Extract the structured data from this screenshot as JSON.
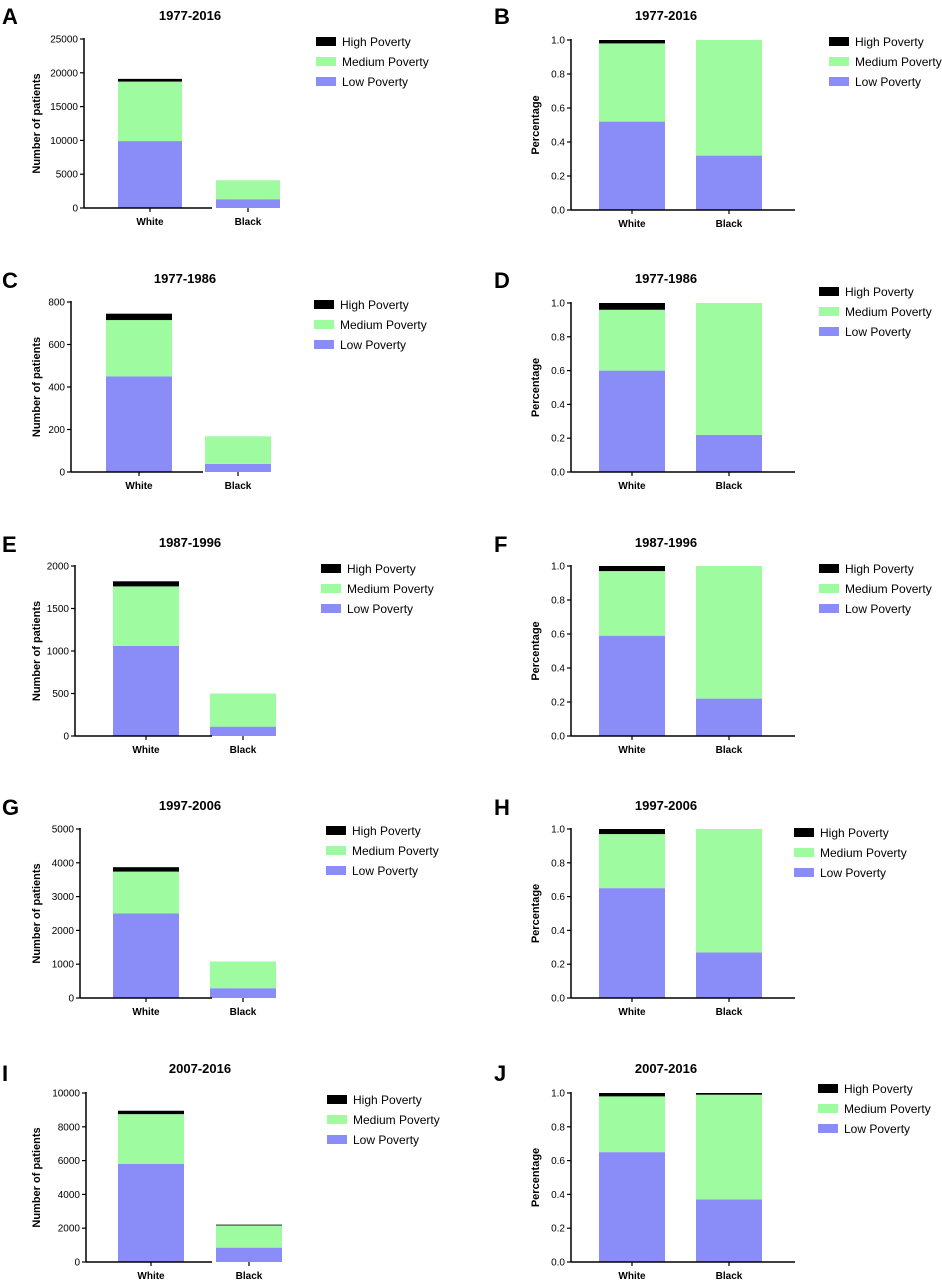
{
  "legend": {
    "high": "High Poverty",
    "medium": "Medium Poverty",
    "low": "Low Poverty"
  },
  "colors": {
    "high": "#000000",
    "medium": "#9ffb9f",
    "low": "#8a8cf8"
  },
  "chart_data": [
    {
      "id": "A",
      "letter": "A",
      "type": "bar",
      "stacked": true,
      "title": "1977-2016",
      "ylabel": "Number of patients",
      "xlabel": "",
      "ylim": [
        0,
        25000
      ],
      "yticks": [
        0,
        5000,
        10000,
        15000,
        20000,
        25000
      ],
      "ytick_labels": [
        "0",
        "5000",
        "10000",
        "15000",
        "20000",
        "25000"
      ],
      "categories": [
        "White",
        "Black"
      ],
      "series": [
        {
          "name": "Low Poverty",
          "values": [
            9900,
            1300
          ]
        },
        {
          "name": "Medium Poverty",
          "values": [
            8800,
            2800
          ]
        },
        {
          "name": "High Poverty",
          "values": [
            400,
            0
          ]
        }
      ]
    },
    {
      "id": "B",
      "letter": "B",
      "type": "bar",
      "stacked": true,
      "title": "1977-2016",
      "ylabel": "Percentage",
      "xlabel": "",
      "ylim": [
        0,
        1.0
      ],
      "yticks": [
        0,
        0.2,
        0.4,
        0.6,
        0.8,
        1.0
      ],
      "ytick_labels": [
        "0.0",
        "0.2",
        "0.4",
        "0.6",
        "0.8",
        "1.0"
      ],
      "categories": [
        "White",
        "Black"
      ],
      "series": [
        {
          "name": "Low Poverty",
          "values": [
            0.52,
            0.32
          ]
        },
        {
          "name": "Medium Poverty",
          "values": [
            0.46,
            0.68
          ]
        },
        {
          "name": "High Poverty",
          "values": [
            0.02,
            0
          ]
        }
      ]
    },
    {
      "id": "C",
      "letter": "C",
      "type": "bar",
      "stacked": true,
      "title": "1977-1986",
      "ylabel": "Number of patients",
      "xlabel": "",
      "ylim": [
        0,
        800
      ],
      "yticks": [
        0,
        200,
        400,
        600,
        800
      ],
      "ytick_labels": [
        "0",
        "200",
        "400",
        "600",
        "800"
      ],
      "categories": [
        "White",
        "Black"
      ],
      "series": [
        {
          "name": "Low Poverty",
          "values": [
            450,
            38
          ]
        },
        {
          "name": "Medium Poverty",
          "values": [
            265,
            130
          ]
        },
        {
          "name": "High Poverty",
          "values": [
            30,
            0
          ]
        }
      ]
    },
    {
      "id": "D",
      "letter": "D",
      "type": "bar",
      "stacked": true,
      "title": "1977-1986",
      "ylabel": "Percentage",
      "xlabel": "",
      "ylim": [
        0,
        1.0
      ],
      "yticks": [
        0,
        0.2,
        0.4,
        0.6,
        0.8,
        1.0
      ],
      "ytick_labels": [
        "0.0",
        "0.2",
        "0.4",
        "0.6",
        "0.8",
        "1.0"
      ],
      "categories": [
        "White",
        "Black"
      ],
      "series": [
        {
          "name": "Low Poverty",
          "values": [
            0.6,
            0.22
          ]
        },
        {
          "name": "Medium Poverty",
          "values": [
            0.36,
            0.78
          ]
        },
        {
          "name": "High Poverty",
          "values": [
            0.04,
            0
          ]
        }
      ]
    },
    {
      "id": "E",
      "letter": "E",
      "type": "bar",
      "stacked": true,
      "title": "1987-1996",
      "ylabel": "Number of patients",
      "xlabel": "",
      "ylim": [
        0,
        2000
      ],
      "yticks": [
        0,
        500,
        1000,
        1500,
        2000
      ],
      "ytick_labels": [
        "0",
        "500",
        "1000",
        "1500",
        "2000"
      ],
      "categories": [
        "White",
        "Black"
      ],
      "series": [
        {
          "name": "Low Poverty",
          "values": [
            1060,
            110
          ]
        },
        {
          "name": "Medium Poverty",
          "values": [
            700,
            390
          ]
        },
        {
          "name": "High Poverty",
          "values": [
            60,
            0
          ]
        }
      ]
    },
    {
      "id": "F",
      "letter": "F",
      "type": "bar",
      "stacked": true,
      "title": "1987-1996",
      "ylabel": "Percentage",
      "xlabel": "",
      "ylim": [
        0,
        1.0
      ],
      "yticks": [
        0,
        0.2,
        0.4,
        0.6,
        0.8,
        1.0
      ],
      "ytick_labels": [
        "0.0",
        "0.2",
        "0.4",
        "0.6",
        "0.8",
        "1.0"
      ],
      "categories": [
        "White",
        "Black"
      ],
      "series": [
        {
          "name": "Low Poverty",
          "values": [
            0.59,
            0.22
          ]
        },
        {
          "name": "Medium Poverty",
          "values": [
            0.38,
            0.78
          ]
        },
        {
          "name": "High Poverty",
          "values": [
            0.03,
            0
          ]
        }
      ]
    },
    {
      "id": "G",
      "letter": "G",
      "type": "bar",
      "stacked": true,
      "title": "1997-2006",
      "ylabel": "Number of patients",
      "xlabel": "",
      "ylim": [
        0,
        5000
      ],
      "yticks": [
        0,
        1000,
        2000,
        3000,
        4000,
        5000
      ],
      "ytick_labels": [
        "0",
        "1000",
        "2000",
        "3000",
        "4000",
        "5000"
      ],
      "categories": [
        "White",
        "Black"
      ],
      "series": [
        {
          "name": "Low Poverty",
          "values": [
            2500,
            290
          ]
        },
        {
          "name": "Medium Poverty",
          "values": [
            1240,
            790
          ]
        },
        {
          "name": "High Poverty",
          "values": [
            130,
            0
          ]
        }
      ]
    },
    {
      "id": "H",
      "letter": "H",
      "type": "bar",
      "stacked": true,
      "title": "1997-2006",
      "ylabel": "Percentage",
      "xlabel": "",
      "ylim": [
        0,
        1.0
      ],
      "yticks": [
        0,
        0.2,
        0.4,
        0.6,
        0.8,
        1.0
      ],
      "ytick_labels": [
        "0.0",
        "0.2",
        "0.4",
        "0.6",
        "0.8",
        "1.0"
      ],
      "categories": [
        "White",
        "Black"
      ],
      "series": [
        {
          "name": "Low Poverty",
          "values": [
            0.65,
            0.27
          ]
        },
        {
          "name": "Medium Poverty",
          "values": [
            0.32,
            0.73
          ]
        },
        {
          "name": "High Poverty",
          "values": [
            0.03,
            0
          ]
        }
      ]
    },
    {
      "id": "I",
      "letter": "I",
      "type": "bar",
      "stacked": true,
      "title": "2007-2016",
      "ylabel": "Number of patients",
      "xlabel": "",
      "ylim": [
        0,
        10000
      ],
      "yticks": [
        0,
        2000,
        4000,
        6000,
        8000,
        10000
      ],
      "ytick_labels": [
        "0",
        "2000",
        "4000",
        "6000",
        "8000",
        "10000"
      ],
      "categories": [
        "White",
        "Black"
      ],
      "series": [
        {
          "name": "Low Poverty",
          "values": [
            5800,
            850
          ]
        },
        {
          "name": "Medium Poverty",
          "values": [
            2950,
            1350
          ]
        },
        {
          "name": "High Poverty",
          "values": [
            200,
            10
          ]
        }
      ]
    },
    {
      "id": "J",
      "letter": "J",
      "type": "bar",
      "stacked": true,
      "title": "2007-2016",
      "ylabel": "Percentage",
      "xlabel": "",
      "ylim": [
        0,
        1.0
      ],
      "yticks": [
        0,
        0.2,
        0.4,
        0.6,
        0.8,
        1.0
      ],
      "ytick_labels": [
        "0.0",
        "0.2",
        "0.4",
        "0.6",
        "0.8",
        "1.0"
      ],
      "categories": [
        "White",
        "Black"
      ],
      "series": [
        {
          "name": "Low Poverty",
          "values": [
            0.65,
            0.37
          ]
        },
        {
          "name": "Medium Poverty",
          "values": [
            0.33,
            0.62
          ]
        },
        {
          "name": "High Poverty",
          "values": [
            0.02,
            0.01
          ]
        }
      ]
    }
  ]
}
